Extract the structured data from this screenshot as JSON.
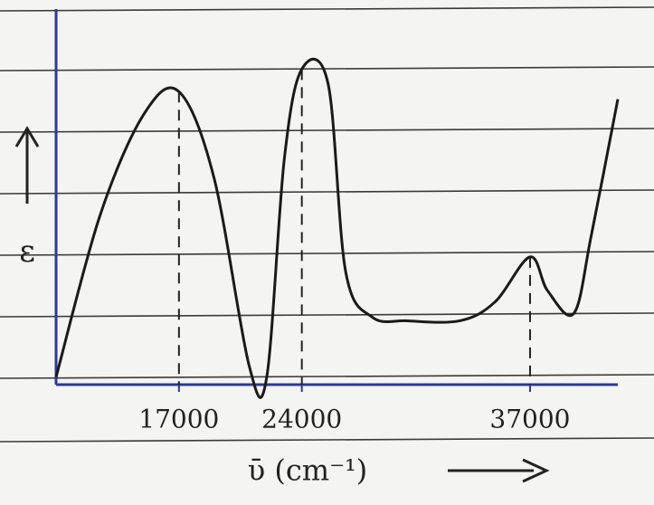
{
  "chart_data": {
    "type": "line",
    "x_label": "ῡ (cm⁻¹)",
    "y_label": "ε",
    "x": [
      10000,
      12500,
      15000,
      17000,
      19000,
      21000,
      22000,
      23000,
      24000,
      25500,
      26500,
      28000,
      30000,
      33000,
      35000,
      37000,
      38000,
      39500,
      40500,
      42000
    ],
    "series": [
      {
        "color": "#1a1a1a",
        "values": [
          0.02,
          0.45,
          0.72,
          0.78,
          0.55,
          0.05,
          0.02,
          0.6,
          0.84,
          0.8,
          0.3,
          0.18,
          0.17,
          0.17,
          0.22,
          0.34,
          0.25,
          0.19,
          0.4,
          0.76
        ]
      }
    ],
    "xlim": [
      10000,
      42000
    ],
    "ylim": [
      0,
      1
    ],
    "xticks": [
      17000,
      24000,
      37000
    ],
    "axis_color": "#2b3a96",
    "peak_lines": true
  }
}
